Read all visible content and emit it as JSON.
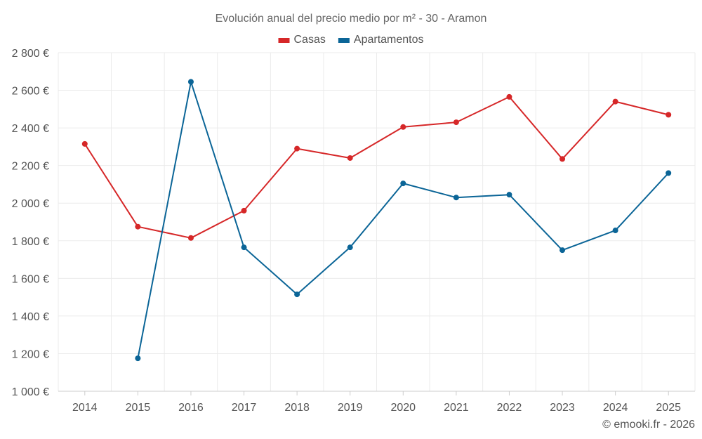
{
  "chart_data": {
    "type": "line",
    "title": "Evolución anual del precio medio por m² - 30 - Aramon",
    "categories": [
      "2014",
      "2015",
      "2016",
      "2017",
      "2018",
      "2019",
      "2020",
      "2021",
      "2022",
      "2023",
      "2024",
      "2025"
    ],
    "series": [
      {
        "name": "Casas",
        "color": "#d62728",
        "values": [
          2315,
          1875,
          1815,
          1960,
          2290,
          2240,
          2405,
          2430,
          2565,
          2235,
          2540,
          2470
        ]
      },
      {
        "name": "Apartamentos",
        "color": "#0b6597",
        "values": [
          null,
          1175,
          2645,
          1765,
          1515,
          1765,
          2105,
          2030,
          2045,
          1750,
          1855,
          2160
        ]
      }
    ],
    "ylim": [
      1000,
      2800
    ],
    "yticks": [
      1000,
      1200,
      1400,
      1600,
      1800,
      2000,
      2200,
      2400,
      2600,
      2800
    ],
    "ytick_labels": [
      "1 000 €",
      "1 200 €",
      "1 400 €",
      "1 600 €",
      "1 800 €",
      "2 000 €",
      "2 200 €",
      "2 400 €",
      "2 600 €",
      "2 800 €"
    ],
    "grid": true,
    "legend": "top-center",
    "xlabel": "",
    "ylabel": ""
  },
  "credit": "© emooki.fr - 2026"
}
